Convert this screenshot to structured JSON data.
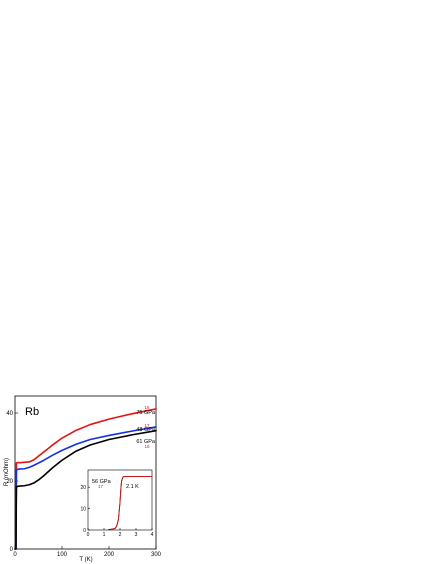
{
  "chart_data": [
    {
      "type": "line",
      "xlabel": "T (K)",
      "ylabel": "R (mOhm)",
      "xlim": [
        0,
        300
      ],
      "ylim": [
        0,
        45
      ],
      "xticks": [
        0,
        100,
        200,
        300
      ],
      "yticks": [
        0,
        20,
        40
      ],
      "grid": false,
      "series": [
        {
          "name": "75 GPa",
          "color": "#e01414",
          "ref_label": "16",
          "x": [
            0,
            2,
            3,
            5,
            10,
            20,
            30,
            40,
            50,
            60,
            80,
            100,
            130,
            160,
            200,
            250,
            300
          ],
          "y": [
            0,
            0,
            25.3,
            25.4,
            25.4,
            25.5,
            25.6,
            26.2,
            27.3,
            28.4,
            30.6,
            32.6,
            34.9,
            36.6,
            38.2,
            39.8,
            41.2
          ]
        },
        {
          "name": "48 GPa",
          "color": "#1530e0",
          "ref_label": "17",
          "x": [
            0,
            2,
            3,
            5,
            10,
            20,
            30,
            40,
            50,
            60,
            80,
            100,
            130,
            160,
            200,
            250,
            300
          ],
          "y": [
            0,
            0,
            23.2,
            23.4,
            23.5,
            23.6,
            24.0,
            24.6,
            25.3,
            26.0,
            27.6,
            29.0,
            30.8,
            32.2,
            33.4,
            34.7,
            35.9
          ]
        },
        {
          "name": "61 GPa",
          "color": "#000000",
          "ref_label": "18",
          "x": [
            0,
            2,
            3,
            5,
            10,
            20,
            30,
            40,
            50,
            60,
            80,
            100,
            130,
            160,
            200,
            250,
            300
          ],
          "y": [
            0,
            0,
            18.3,
            18.4,
            18.5,
            18.6,
            18.9,
            19.4,
            20.3,
            21.4,
            23.9,
            26.1,
            28.8,
            30.6,
            32.2,
            33.6,
            34.8
          ]
        }
      ],
      "annotations": [
        "Rb"
      ]
    },
    {
      "type": "line",
      "inset": true,
      "xlim": [
        0,
        4
      ],
      "ylim": [
        0,
        28
      ],
      "xticks": [
        0,
        1,
        2,
        3,
        4
      ],
      "yticks": [
        0,
        10,
        20
      ],
      "series": [
        {
          "name": "56 GPa",
          "color": "#000000",
          "ref_label": "17",
          "x": [
            1.3,
            1.5,
            1.7,
            1.8,
            1.9,
            2.0,
            2.05,
            2.1,
            2.2,
            2.4,
            3.0,
            4.0
          ],
          "y": [
            0.2,
            0.4,
            0.8,
            2.0,
            5.0,
            13.0,
            19.0,
            23.0,
            24.9,
            25.0,
            25.0,
            25.0
          ]
        },
        {
          "name": "",
          "color": "#e01414",
          "x": [
            1.4,
            1.7,
            1.8,
            1.9,
            2.0,
            2.05,
            2.1,
            2.2,
            2.4,
            3.0,
            4.0
          ],
          "y": [
            0.3,
            0.7,
            1.8,
            4.8,
            12.5,
            18.5,
            22.8,
            24.9,
            25.0,
            25.0,
            25.0
          ]
        }
      ],
      "annotations": [
        "2.1 K"
      ]
    }
  ]
}
